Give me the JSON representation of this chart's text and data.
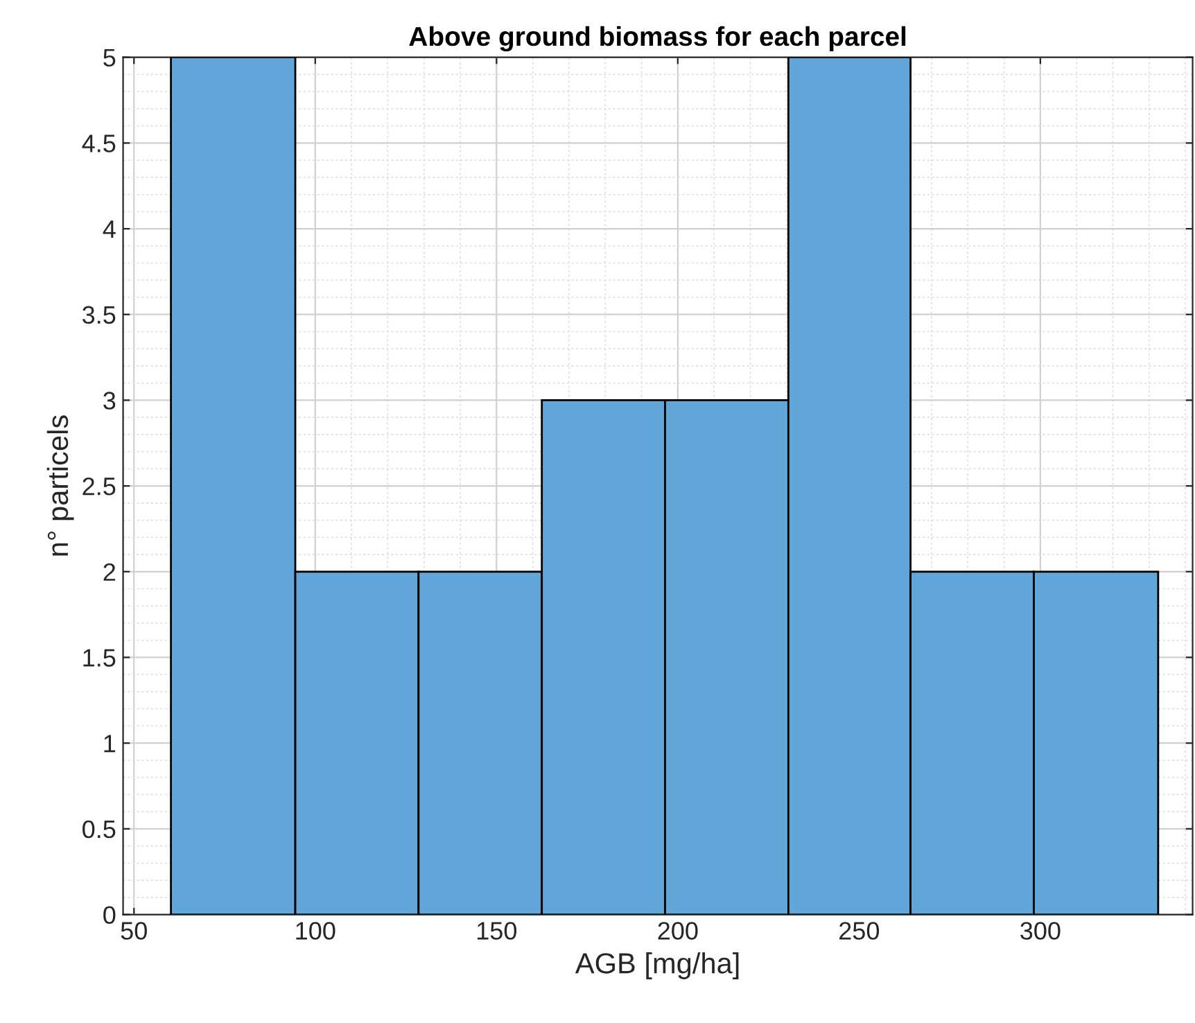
{
  "chart_data": {
    "type": "histogram",
    "title": "Above ground biomass for each parcel",
    "xlabel": "AGB [mg/ha]",
    "ylabel": "n° particels",
    "bins": [
      60.2,
      94.5,
      128.5,
      162.5,
      196.5,
      230.5,
      264.2,
      298.2,
      332.5
    ],
    "values": [
      5,
      2,
      2,
      3,
      3,
      5,
      2,
      2
    ],
    "color": "#62a6d9",
    "xlim": [
      47,
      342
    ],
    "xticks": [
      50,
      100,
      150,
      200,
      250,
      300
    ],
    "ylim": [
      0,
      5
    ],
    "yticks": [
      0,
      0.5,
      1,
      1.5,
      2,
      2.5,
      3,
      3.5,
      4,
      4.5,
      5
    ],
    "grid": true
  }
}
